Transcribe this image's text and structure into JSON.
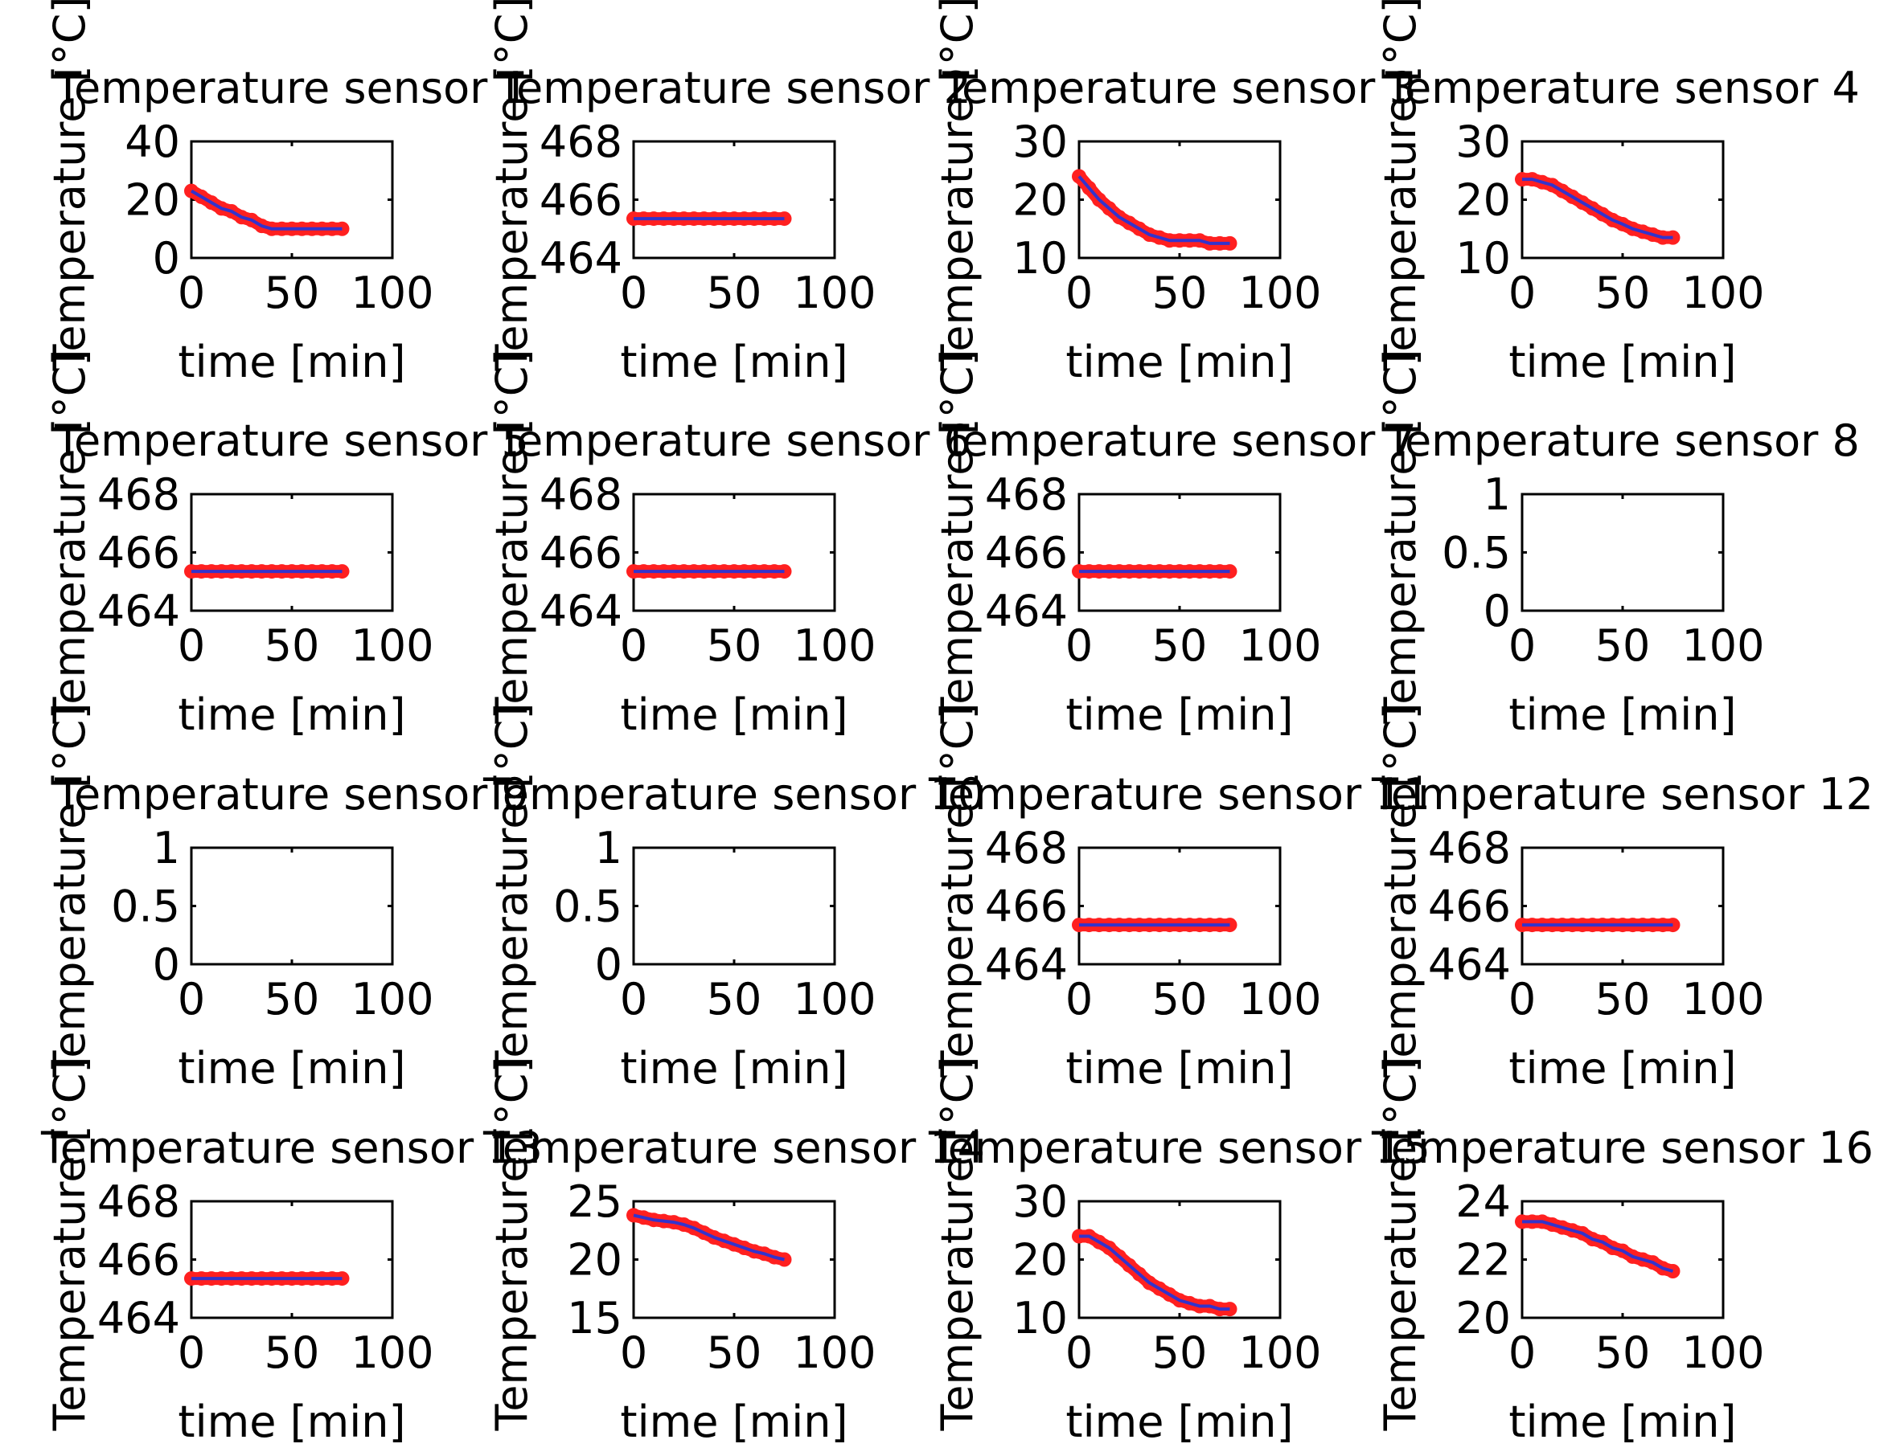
{
  "style": {
    "line_color": "#3333cc",
    "marker_color": "#ff2020",
    "axes_color": "#000000",
    "background": "#ffffff"
  },
  "chart_data": [
    {
      "type": "line",
      "title": "Temperature sensor 1",
      "xlabel": "time [min]",
      "ylabel": "Temperature [°C]",
      "xlim": [
        0,
        100
      ],
      "ylim": [
        0,
        40
      ],
      "xticks": [
        "0",
        "50",
        "100"
      ],
      "yticks": [
        "0",
        "20",
        "40"
      ],
      "x": [
        0,
        5,
        10,
        15,
        20,
        25,
        30,
        35,
        40,
        45,
        50,
        55,
        60,
        65,
        70,
        75
      ],
      "series": [
        {
          "values": [
            23,
            21,
            19,
            17,
            16,
            14,
            13,
            11,
            10,
            10,
            10,
            10,
            10,
            10,
            10,
            10
          ]
        }
      ]
    },
    {
      "type": "line",
      "title": "Temperature sensor 2",
      "xlabel": "time [min]",
      "ylabel": "Temperature [°C]",
      "xlim": [
        0,
        100
      ],
      "ylim": [
        464,
        468
      ],
      "xticks": [
        "0",
        "50",
        "100"
      ],
      "yticks": [
        "464",
        "466",
        "468"
      ],
      "x": [
        0,
        5,
        10,
        15,
        20,
        25,
        30,
        35,
        40,
        45,
        50,
        55,
        60,
        65,
        70,
        75
      ],
      "series": [
        {
          "values": [
            465.35,
            465.35,
            465.35,
            465.35,
            465.35,
            465.35,
            465.35,
            465.35,
            465.35,
            465.35,
            465.35,
            465.35,
            465.35,
            465.35,
            465.35,
            465.35
          ]
        }
      ]
    },
    {
      "type": "line",
      "title": "Temperature sensor 3",
      "xlabel": "time [min]",
      "ylabel": "Temperature [°C]",
      "xlim": [
        0,
        100
      ],
      "ylim": [
        10,
        30
      ],
      "xticks": [
        "0",
        "50",
        "100"
      ],
      "yticks": [
        "10",
        "20",
        "30"
      ],
      "x": [
        0,
        5,
        10,
        15,
        20,
        25,
        30,
        35,
        40,
        45,
        50,
        55,
        60,
        65,
        70,
        75
      ],
      "series": [
        {
          "values": [
            24,
            22,
            20,
            18.5,
            17,
            16,
            15,
            14,
            13.5,
            13,
            13,
            13,
            13,
            12.5,
            12.5,
            12.5
          ]
        }
      ]
    },
    {
      "type": "line",
      "title": "Temperature sensor 4",
      "xlabel": "time [min]",
      "ylabel": "Temperature [°C]",
      "xlim": [
        0,
        100
      ],
      "ylim": [
        10,
        30
      ],
      "xticks": [
        "0",
        "50",
        "100"
      ],
      "yticks": [
        "10",
        "20",
        "30"
      ],
      "x": [
        0,
        5,
        10,
        15,
        20,
        25,
        30,
        35,
        40,
        45,
        50,
        55,
        60,
        65,
        70,
        75
      ],
      "series": [
        {
          "values": [
            23.5,
            23.5,
            23,
            22.5,
            21.5,
            20.5,
            19.5,
            18.5,
            17.5,
            16.5,
            15.8,
            15,
            14.5,
            14,
            13.5,
            13.5
          ]
        }
      ]
    },
    {
      "type": "line",
      "title": "Temperature sensor 5",
      "xlabel": "time [min]",
      "ylabel": "Temperature [°C]",
      "xlim": [
        0,
        100
      ],
      "ylim": [
        464,
        468
      ],
      "xticks": [
        "0",
        "50",
        "100"
      ],
      "yticks": [
        "464",
        "466",
        "468"
      ],
      "x": [
        0,
        5,
        10,
        15,
        20,
        25,
        30,
        35,
        40,
        45,
        50,
        55,
        60,
        65,
        70,
        75
      ],
      "series": [
        {
          "values": [
            465.35,
            465.35,
            465.35,
            465.35,
            465.35,
            465.35,
            465.35,
            465.35,
            465.35,
            465.35,
            465.35,
            465.35,
            465.35,
            465.35,
            465.35,
            465.35
          ]
        }
      ]
    },
    {
      "type": "line",
      "title": "Temperature sensor 6",
      "xlabel": "time [min]",
      "ylabel": "Temperature [°C]",
      "xlim": [
        0,
        100
      ],
      "ylim": [
        464,
        468
      ],
      "xticks": [
        "0",
        "50",
        "100"
      ],
      "yticks": [
        "464",
        "466",
        "468"
      ],
      "x": [
        0,
        5,
        10,
        15,
        20,
        25,
        30,
        35,
        40,
        45,
        50,
        55,
        60,
        65,
        70,
        75
      ],
      "series": [
        {
          "values": [
            465.35,
            465.35,
            465.35,
            465.35,
            465.35,
            465.35,
            465.35,
            465.35,
            465.35,
            465.35,
            465.35,
            465.35,
            465.35,
            465.35,
            465.35,
            465.35
          ]
        }
      ]
    },
    {
      "type": "line",
      "title": "Temperature sensor 7",
      "xlabel": "time [min]",
      "ylabel": "Temperature [°C]",
      "xlim": [
        0,
        100
      ],
      "ylim": [
        464,
        468
      ],
      "xticks": [
        "0",
        "50",
        "100"
      ],
      "yticks": [
        "464",
        "466",
        "468"
      ],
      "x": [
        0,
        5,
        10,
        15,
        20,
        25,
        30,
        35,
        40,
        45,
        50,
        55,
        60,
        65,
        70,
        75
      ],
      "series": [
        {
          "values": [
            465.35,
            465.35,
            465.35,
            465.35,
            465.35,
            465.35,
            465.35,
            465.35,
            465.35,
            465.35,
            465.35,
            465.35,
            465.35,
            465.35,
            465.35,
            465.35
          ]
        }
      ]
    },
    {
      "type": "line",
      "title": "Temperature sensor 8",
      "xlabel": "time [min]",
      "ylabel": "Temperature [°C]",
      "xlim": [
        0,
        100
      ],
      "ylim": [
        0,
        1
      ],
      "xticks": [
        "0",
        "50",
        "100"
      ],
      "yticks": [
        "0",
        "0.5",
        "1"
      ],
      "x": [],
      "series": []
    },
    {
      "type": "line",
      "title": "Temperature sensor 9",
      "xlabel": "time [min]",
      "ylabel": "Temperature [°C]",
      "xlim": [
        0,
        100
      ],
      "ylim": [
        0,
        1
      ],
      "xticks": [
        "0",
        "50",
        "100"
      ],
      "yticks": [
        "0",
        "0.5",
        "1"
      ],
      "x": [],
      "series": []
    },
    {
      "type": "line",
      "title": "Temperature sensor 10",
      "xlabel": "time [min]",
      "ylabel": "Temperature [°C]",
      "xlim": [
        0,
        100
      ],
      "ylim": [
        0,
        1
      ],
      "xticks": [
        "0",
        "50",
        "100"
      ],
      "yticks": [
        "0",
        "0.5",
        "1"
      ],
      "x": [],
      "series": []
    },
    {
      "type": "line",
      "title": "Temperature sensor 11",
      "xlabel": "time [min]",
      "ylabel": "Temperature [°C]",
      "xlim": [
        0,
        100
      ],
      "ylim": [
        464,
        468
      ],
      "xticks": [
        "0",
        "50",
        "100"
      ],
      "yticks": [
        "464",
        "466",
        "468"
      ],
      "x": [
        0,
        5,
        10,
        15,
        20,
        25,
        30,
        35,
        40,
        45,
        50,
        55,
        60,
        65,
        70,
        75
      ],
      "series": [
        {
          "values": [
            465.35,
            465.35,
            465.35,
            465.35,
            465.35,
            465.35,
            465.35,
            465.35,
            465.35,
            465.35,
            465.35,
            465.35,
            465.35,
            465.35,
            465.35,
            465.35
          ]
        }
      ]
    },
    {
      "type": "line",
      "title": "Temperature sensor 12",
      "xlabel": "time [min]",
      "ylabel": "Temperature [°C]",
      "xlim": [
        0,
        100
      ],
      "ylim": [
        464,
        468
      ],
      "xticks": [
        "0",
        "50",
        "100"
      ],
      "yticks": [
        "464",
        "466",
        "468"
      ],
      "x": [
        0,
        5,
        10,
        15,
        20,
        25,
        30,
        35,
        40,
        45,
        50,
        55,
        60,
        65,
        70,
        75
      ],
      "series": [
        {
          "values": [
            465.35,
            465.35,
            465.35,
            465.35,
            465.35,
            465.35,
            465.35,
            465.35,
            465.35,
            465.35,
            465.35,
            465.35,
            465.35,
            465.35,
            465.35,
            465.35
          ]
        }
      ]
    },
    {
      "type": "line",
      "title": "Temperature sensor 13",
      "xlabel": "time [min]",
      "ylabel": "Temperature [°C]",
      "xlim": [
        0,
        100
      ],
      "ylim": [
        464,
        468
      ],
      "xticks": [
        "0",
        "50",
        "100"
      ],
      "yticks": [
        "464",
        "466",
        "468"
      ],
      "x": [
        0,
        5,
        10,
        15,
        20,
        25,
        30,
        35,
        40,
        45,
        50,
        55,
        60,
        65,
        70,
        75
      ],
      "series": [
        {
          "values": [
            465.35,
            465.35,
            465.35,
            465.35,
            465.35,
            465.35,
            465.35,
            465.35,
            465.35,
            465.35,
            465.35,
            465.35,
            465.35,
            465.35,
            465.35,
            465.35
          ]
        }
      ]
    },
    {
      "type": "line",
      "title": "Temperature sensor 14",
      "xlabel": "time [min]",
      "ylabel": "Temperature [°C]",
      "xlim": [
        0,
        100
      ],
      "ylim": [
        15,
        25
      ],
      "xticks": [
        "0",
        "50",
        "100"
      ],
      "yticks": [
        "15",
        "20",
        "25"
      ],
      "x": [
        0,
        5,
        10,
        15,
        20,
        25,
        30,
        35,
        40,
        45,
        50,
        55,
        60,
        65,
        70,
        75
      ],
      "series": [
        {
          "values": [
            23.8,
            23.6,
            23.4,
            23.3,
            23.2,
            23.0,
            22.7,
            22.3,
            21.9,
            21.6,
            21.3,
            21.0,
            20.7,
            20.5,
            20.2,
            20.0
          ]
        }
      ]
    },
    {
      "type": "line",
      "title": "Temperature sensor 15",
      "xlabel": "time [min]",
      "ylabel": "Temperature [°C]",
      "xlim": [
        0,
        100
      ],
      "ylim": [
        10,
        30
      ],
      "xticks": [
        "0",
        "50",
        "100"
      ],
      "yticks": [
        "10",
        "20",
        "30"
      ],
      "x": [
        0,
        5,
        10,
        15,
        20,
        25,
        30,
        35,
        40,
        45,
        50,
        55,
        60,
        65,
        70,
        75
      ],
      "series": [
        {
          "values": [
            24,
            24,
            23,
            22,
            20.5,
            19,
            17.5,
            16,
            15,
            14,
            13,
            12.5,
            12,
            12,
            11.5,
            11.5
          ]
        }
      ]
    },
    {
      "type": "line",
      "title": "Temperature sensor 16",
      "xlabel": "time [min]",
      "ylabel": "Temperature [°C]",
      "xlim": [
        0,
        100
      ],
      "ylim": [
        20,
        24
      ],
      "xticks": [
        "0",
        "50",
        "100"
      ],
      "yticks": [
        "20",
        "22",
        "24"
      ],
      "x": [
        0,
        5,
        10,
        15,
        20,
        25,
        30,
        35,
        40,
        45,
        50,
        55,
        60,
        65,
        70,
        75
      ],
      "series": [
        {
          "values": [
            23.3,
            23.3,
            23.3,
            23.2,
            23.1,
            23.0,
            22.9,
            22.7,
            22.6,
            22.4,
            22.3,
            22.1,
            22.0,
            21.9,
            21.7,
            21.6
          ]
        }
      ]
    }
  ]
}
